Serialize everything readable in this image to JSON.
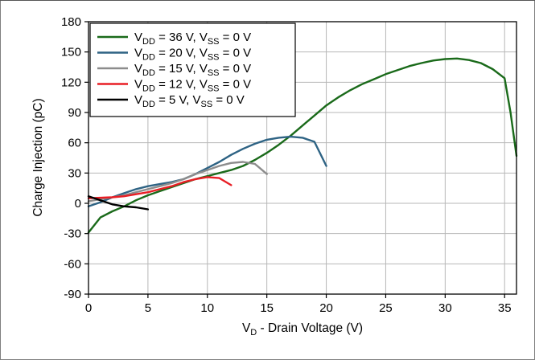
{
  "chart_data": {
    "type": "line",
    "title": "",
    "xlabel": {
      "main": "V",
      "sub": "D",
      "rest": " - Drain Voltage (V)"
    },
    "ylabel": "Charge Injection (pC)",
    "xlim": [
      0,
      36
    ],
    "ylim": [
      -90,
      180
    ],
    "xticks": [
      0,
      5,
      10,
      15,
      20,
      25,
      30,
      35
    ],
    "yticks": [
      -90,
      -60,
      -30,
      0,
      30,
      60,
      90,
      120,
      150,
      180
    ],
    "grid": true,
    "legend_position": "top-left",
    "series": [
      {
        "name": "VDD = 36 V, VSS = 0 V",
        "label": {
          "vdd_sub": "DD",
          "vdd": " = 36 V, V",
          "vss_sub": "SS",
          "vss": " = 0 V"
        },
        "color": "#1a6a1a",
        "x": [
          0,
          1,
          2,
          3,
          4,
          5,
          6,
          7,
          8,
          9,
          10,
          11,
          12,
          13,
          14,
          15,
          16,
          17,
          18,
          19,
          20,
          21,
          22,
          23,
          24,
          25,
          26,
          27,
          28,
          29,
          30,
          31,
          32,
          33,
          34,
          35,
          35.5,
          36
        ],
        "y": [
          -29,
          -14,
          -8,
          -3,
          3,
          8,
          12,
          16,
          20,
          24,
          27,
          30,
          33,
          37,
          43,
          50,
          58,
          67,
          77,
          87,
          97,
          105,
          112,
          118,
          123,
          128,
          132,
          136,
          139,
          141.5,
          143,
          143.5,
          142,
          139,
          133,
          124,
          90,
          47
        ]
      },
      {
        "name": "VDD = 20 V, VSS = 0 V",
        "label": {
          "vdd_sub": "DD",
          "vdd": " = 20 V, V",
          "vss_sub": "SS",
          "vss": " = 0 V"
        },
        "color": "#2e6384",
        "x": [
          0,
          1,
          2,
          3,
          4,
          5,
          6,
          7,
          8,
          9,
          10,
          11,
          12,
          13,
          14,
          15,
          16,
          17,
          18,
          19,
          20
        ],
        "y": [
          -3,
          1,
          6,
          10,
          14,
          17,
          19,
          21,
          24,
          29,
          35,
          41,
          48,
          54,
          59,
          63,
          65,
          66,
          65,
          61,
          37
        ]
      },
      {
        "name": "VDD = 15 V, VSS = 0 V",
        "label": {
          "vdd_sub": "DD",
          "vdd": " = 15 V, V",
          "vss_sub": "SS",
          "vss": " = 0 V"
        },
        "color": "#8c8c8c",
        "x": [
          0,
          1,
          2,
          3,
          4,
          5,
          6,
          7,
          8,
          9,
          10,
          11,
          12,
          13,
          14,
          15
        ],
        "y": [
          2,
          4,
          6,
          8,
          11,
          14,
          17,
          20,
          24,
          29,
          33,
          37,
          40,
          41,
          39,
          29
        ]
      },
      {
        "name": "VDD = 12 V, VSS = 0 V",
        "label": {
          "vdd_sub": "DD",
          "vdd": " = 12 V, V",
          "vss_sub": "SS",
          "vss": " = 0 V"
        },
        "color": "#e81e25",
        "x": [
          0,
          1,
          2,
          3,
          4,
          5,
          6,
          7,
          8,
          9,
          10,
          11,
          12
        ],
        "y": [
          5,
          5.5,
          6,
          7,
          9,
          11,
          14,
          17,
          21,
          24,
          26,
          25,
          18
        ]
      },
      {
        "name": "VDD = 5 V, VSS = 0 V",
        "label": {
          "vdd_sub": "DD",
          "vdd": " = 5 V, V",
          "vss_sub": "SS",
          "vss": " = 0 V"
        },
        "color": "#000000",
        "x": [
          0,
          1,
          2,
          3,
          4,
          5
        ],
        "y": [
          7,
          3,
          -1,
          -3,
          -4,
          -6
        ]
      }
    ]
  }
}
